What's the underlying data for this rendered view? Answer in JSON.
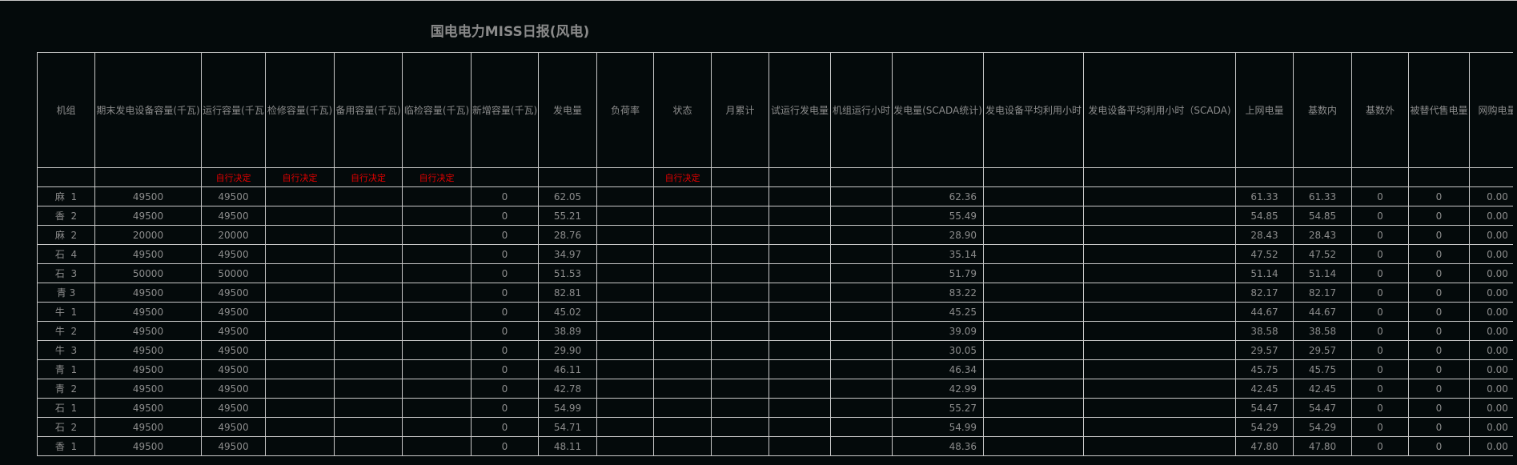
{
  "title": "国电电力MISS日报(风电)",
  "colors": {
    "background": "#040a0b",
    "text": "#8c8c8c",
    "grid": "#c8c8c8",
    "note": "#e00000"
  },
  "columns": [
    "机组",
    "期末发电设备容量(千瓦)",
    "运行容量(千瓦",
    "检修容量(千瓦)",
    "备用容量(千瓦)",
    "临检容量(千瓦)",
    "新增容量(千瓦)",
    "发电量",
    "负荷率",
    "状态",
    "月累计",
    "试运行发电量",
    "机组运行小时",
    "发电量(SCADA统计)",
    "发电设备平均利用小时",
    "发电设备平均利用小时（SCADA)",
    "上网电量",
    "基数内",
    "基数外",
    "被替代售电量",
    "网购电量"
  ],
  "note_row": [
    "",
    "",
    "自行决定",
    "自行决定",
    "自行决定",
    "自行决定",
    "",
    "",
    "",
    "自行决定",
    "",
    "",
    "",
    "",
    "",
    "",
    "",
    "",
    "",
    "",
    ""
  ],
  "rows": [
    [
      "麻  1",
      "49500",
      "49500",
      "",
      "",
      "",
      "0",
      "62.05",
      "",
      "",
      "",
      "",
      "",
      "62.36",
      "",
      "",
      "61.33",
      "61.33",
      "0",
      "0",
      "0.00"
    ],
    [
      "香  2",
      "49500",
      "49500",
      "",
      "",
      "",
      "0",
      "55.21",
      "",
      "",
      "",
      "",
      "",
      "55.49",
      "",
      "",
      "54.85",
      "54.85",
      "0",
      "0",
      "0.00"
    ],
    [
      "麻  2",
      "20000",
      "20000",
      "",
      "",
      "",
      "0",
      "28.76",
      "",
      "",
      "",
      "",
      "",
      "28.90",
      "",
      "",
      "28.43",
      "28.43",
      "0",
      "0",
      "0.00"
    ],
    [
      "石  4",
      "49500",
      "49500",
      "",
      "",
      "",
      "0",
      "34.97",
      "",
      "",
      "",
      "",
      "",
      "35.14",
      "",
      "",
      "47.52",
      "47.52",
      "0",
      "0",
      "0.00"
    ],
    [
      "石  3",
      "50000",
      "50000",
      "",
      "",
      "",
      "0",
      "51.53",
      "",
      "",
      "",
      "",
      "",
      "51.79",
      "",
      "",
      "51.14",
      "51.14",
      "0",
      "0",
      "0.00"
    ],
    [
      "青 3",
      "49500",
      "49500",
      "",
      "",
      "",
      "0",
      "82.81",
      "",
      "",
      "",
      "",
      "",
      "83.22",
      "",
      "",
      "82.17",
      "82.17",
      "0",
      "0",
      "0.00"
    ],
    [
      "牛  1",
      "49500",
      "49500",
      "",
      "",
      "",
      "0",
      "45.02",
      "",
      "",
      "",
      "",
      "",
      "45.25",
      "",
      "",
      "44.67",
      "44.67",
      "0",
      "0",
      "0.00"
    ],
    [
      "牛  2",
      "49500",
      "49500",
      "",
      "",
      "",
      "0",
      "38.89",
      "",
      "",
      "",
      "",
      "",
      "39.09",
      "",
      "",
      "38.58",
      "38.58",
      "0",
      "0",
      "0.00"
    ],
    [
      "牛  3",
      "49500",
      "49500",
      "",
      "",
      "",
      "0",
      "29.90",
      "",
      "",
      "",
      "",
      "",
      "30.05",
      "",
      "",
      "29.57",
      "29.57",
      "0",
      "0",
      "0.00"
    ],
    [
      "青  1",
      "49500",
      "49500",
      "",
      "",
      "",
      "0",
      "46.11",
      "",
      "",
      "",
      "",
      "",
      "46.34",
      "",
      "",
      "45.75",
      "45.75",
      "0",
      "0",
      "0.00"
    ],
    [
      "青  2",
      "49500",
      "49500",
      "",
      "",
      "",
      "0",
      "42.78",
      "",
      "",
      "",
      "",
      "",
      "42.99",
      "",
      "",
      "42.45",
      "42.45",
      "0",
      "0",
      "0.00"
    ],
    [
      "石  1",
      "49500",
      "49500",
      "",
      "",
      "",
      "0",
      "54.99",
      "",
      "",
      "",
      "",
      "",
      "55.27",
      "",
      "",
      "54.47",
      "54.47",
      "0",
      "0",
      "0.00"
    ],
    [
      "石  2",
      "49500",
      "49500",
      "",
      "",
      "",
      "0",
      "54.71",
      "",
      "",
      "",
      "",
      "",
      "54.99",
      "",
      "",
      "54.29",
      "54.29",
      "0",
      "0",
      "0.00"
    ],
    [
      "香  1",
      "49500",
      "49500",
      "",
      "",
      "",
      "0",
      "48.11",
      "",
      "",
      "",
      "",
      "",
      "48.36",
      "",
      "",
      "47.80",
      "47.80",
      "0",
      "0",
      "0.00"
    ]
  ]
}
